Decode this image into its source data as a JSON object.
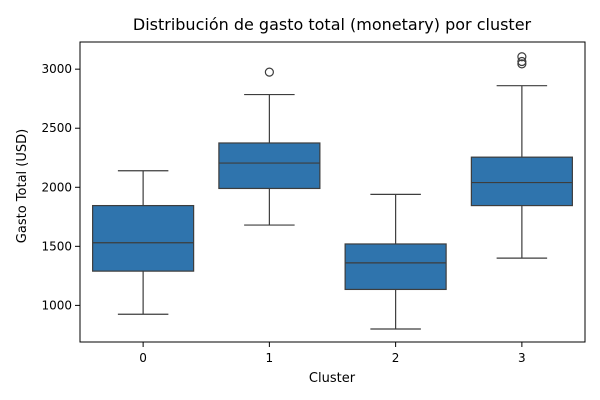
{
  "chart_data": {
    "type": "boxplot",
    "title": "Distribución de gasto total (monetary) por cluster",
    "xlabel": "Cluster",
    "ylabel": "Gasto Total (USD)",
    "categories": [
      "0",
      "1",
      "2",
      "3"
    ],
    "ylim": [
      690,
      3230
    ],
    "yticks": [
      1000,
      1500,
      2000,
      2500,
      3000
    ],
    "grid": false,
    "box_color": "#2f74ad",
    "line_color": "#3d3d3d",
    "boxes": [
      {
        "category": "0",
        "whisker_low": 925,
        "q1": 1290,
        "median": 1530,
        "q3": 1845,
        "whisker_high": 2140,
        "outliers": []
      },
      {
        "category": "1",
        "whisker_low": 1680,
        "q1": 1990,
        "median": 2205,
        "q3": 2375,
        "whisker_high": 2785,
        "outliers": [
          2975
        ]
      },
      {
        "category": "2",
        "whisker_low": 800,
        "q1": 1135,
        "median": 1360,
        "q3": 1520,
        "whisker_high": 1940,
        "outliers": []
      },
      {
        "category": "3",
        "whisker_low": 1400,
        "q1": 1845,
        "median": 2040,
        "q3": 2255,
        "whisker_high": 2860,
        "outliers": [
          3045,
          3065,
          3105
        ]
      }
    ]
  }
}
